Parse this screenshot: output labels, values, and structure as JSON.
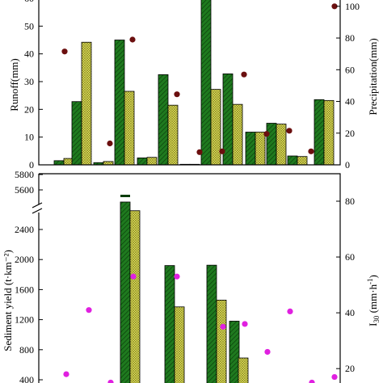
{
  "colors": {
    "runoff_bar": "#1f7a1f",
    "sediment_bar": "#1f7a1f",
    "yellow_bar": "#e6e65c",
    "precip_dot": "#6b0f0f",
    "i30_dot": "#e020e0",
    "hatch_line": "#0b3d0b",
    "yellow_hatch": "#7a7a20"
  },
  "chart_data": [
    {
      "type": "bar",
      "panel": "top",
      "ylabel": "Runoff(mm)",
      "y2label": "Precipitation(mm)",
      "ylim": [
        0,
        60
      ],
      "y2lim": [
        0,
        105
      ],
      "yticks": [
        "0",
        "10",
        "20",
        "30",
        "40",
        "50",
        "60"
      ],
      "y2ticks": [
        "0",
        "20",
        "40",
        "60",
        "80",
        "100"
      ],
      "groups": 12,
      "series": [
        {
          "values": [
            1.5,
            22.8,
            0.8,
            45.0,
            2.5,
            32.5,
            0.2,
            61.5,
            32.8,
            11.8,
            15.0,
            3.2
          ]
        },
        {
          "values": [
            2.3,
            44.2,
            1.2,
            26.5,
            2.7,
            21.5,
            0.2,
            27.2,
            21.8,
            11.8,
            14.7,
            3.0
          ]
        },
        {
          "values": [
            null,
            23.5,
            null,
            null,
            null,
            null,
            null,
            null,
            null,
            null,
            null,
            null
          ]
        },
        {
          "values": [
            null,
            23.2,
            null,
            null,
            null,
            null,
            null,
            null,
            null,
            null,
            null,
            null
          ]
        }
      ],
      "precipitation": [
        71.5,
        13.5,
        79.0,
        44.5,
        8.0,
        8.5,
        57.0,
        19.5,
        21.5,
        8.5,
        100.0
      ]
    },
    {
      "type": "bar",
      "panel": "bottom",
      "ylabel": "Sediment yield (t·km⁻²)",
      "y2label": "I30 (mm·h⁻¹)",
      "ylim": [
        400,
        2800
      ],
      "ybreak": [
        2800,
        5500
      ],
      "upper_ticks": [
        "5600",
        "5800"
      ],
      "yticks": [
        "400",
        "800",
        "1200",
        "1600",
        "2000",
        "2400"
      ],
      "y2ticks": [
        "20",
        "40",
        "60",
        "80"
      ],
      "series": [
        {
          "values": [
            5680,
            1920,
            1925,
            1180
          ]
        },
        {
          "values": [
            2650,
            1370,
            1460,
            690
          ]
        }
      ],
      "i30": [
        18.0,
        41.0,
        15.0,
        53.0,
        53.0,
        35.0,
        36.0,
        26.0,
        40.5,
        15.0,
        17.0
      ]
    }
  ]
}
